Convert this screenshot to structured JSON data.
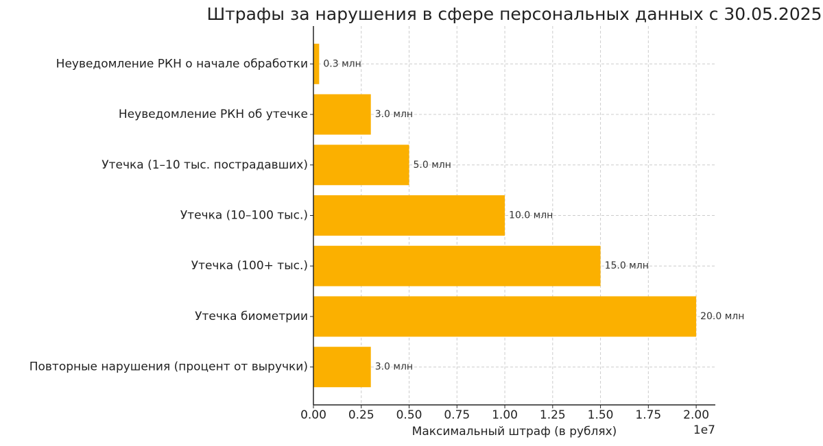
{
  "chart_data": {
    "type": "bar",
    "orientation": "horizontal",
    "title": "Штрафы за нарушения в сфере персональных данных с 30.05.2025",
    "xlabel": "Максимальный штраф (в рублях)",
    "x_offset_label": "1e7",
    "categories": [
      "Неуведомление РКН о начале обработки",
      "Неуведомление РКН об утечке",
      "Утечка (1–10 тыс. пострадавших)",
      "Утечка (10–100 тыс.)",
      "Утечка (100+ тыс.)",
      "Утечка биометрии",
      "Повторные нарушения (процент от выручки)"
    ],
    "values": [
      300000,
      3000000,
      5000000,
      10000000,
      15000000,
      20000000,
      3000000
    ],
    "value_labels": [
      "0.3 млн",
      "3.0 млн",
      "5.0 млн",
      "10.0 млн",
      "15.0 млн",
      "20.0 млн",
      "3.0 млн"
    ],
    "color": "#fbb000",
    "xlim": [
      0,
      21000000
    ],
    "xticks": [
      {
        "value": 0,
        "label": "0.00"
      },
      {
        "value": 2500000,
        "label": "0.25"
      },
      {
        "value": 5000000,
        "label": "0.50"
      },
      {
        "value": 7500000,
        "label": "0.75"
      },
      {
        "value": 10000000,
        "label": "1.00"
      },
      {
        "value": 12500000,
        "label": "1.25"
      },
      {
        "value": 15000000,
        "label": "1.50"
      },
      {
        "value": 17500000,
        "label": "1.75"
      },
      {
        "value": 20000000,
        "label": "2.00"
      }
    ],
    "grid": true
  }
}
